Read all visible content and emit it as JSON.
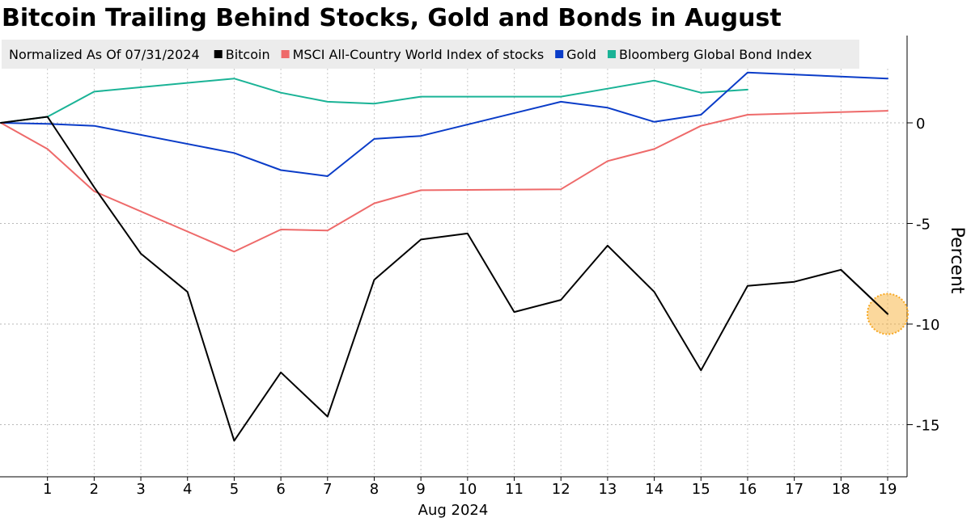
{
  "chart_data": {
    "type": "line",
    "title": "Bitcoin Trailing Behind Stocks, Gold and Bonds in August",
    "subtitle": "Normalized As Of 07/31/2024",
    "xlabel": "Aug 2024",
    "ylabel": "Percent",
    "x": [
      0,
      1,
      2,
      3,
      4,
      5,
      6,
      7,
      8,
      9,
      10,
      11,
      12,
      13,
      14,
      15,
      16,
      17,
      18,
      19
    ],
    "x_ticks": [
      "1",
      "2",
      "3",
      "4",
      "5",
      "6",
      "7",
      "8",
      "9",
      "10",
      "11",
      "12",
      "13",
      "14",
      "15",
      "16",
      "17",
      "18",
      "19"
    ],
    "y_ticks": [
      0,
      -5,
      -10,
      -15
    ],
    "y_tick_labels": [
      "0",
      "-5",
      "-10",
      "-15"
    ],
    "ylim": [
      -17.5,
      4.3
    ],
    "xlim": [
      0,
      19.3
    ],
    "grid": true,
    "legend_position": "top-left",
    "series": [
      {
        "name": "Bitcoin",
        "color": "#000000",
        "x": [
          0,
          1,
          2,
          3,
          4,
          5,
          6,
          7,
          8,
          9,
          10,
          11,
          12,
          13,
          14,
          15,
          16,
          17,
          18,
          19
        ],
        "values": [
          0,
          0.3,
          -3.2,
          -6.5,
          -8.4,
          -15.8,
          -12.4,
          -14.6,
          -7.8,
          -5.8,
          -5.5,
          -9.4,
          -8.8,
          -6.1,
          -8.4,
          -12.3,
          -8.1,
          -7.9,
          -7.3,
          -9.5
        ]
      },
      {
        "name": "MSCI All-Country World Index of stocks",
        "color": "#ee6a6a",
        "x": [
          0,
          1,
          2,
          5,
          6,
          7,
          8,
          9,
          12,
          13,
          14,
          15,
          16,
          19
        ],
        "values": [
          0,
          -1.3,
          -3.4,
          -6.4,
          -5.3,
          -5.35,
          -4.0,
          -3.35,
          -3.3,
          -1.9,
          -1.3,
          -0.15,
          0.4,
          0.6
        ]
      },
      {
        "name": "Gold",
        "color": "#0a3cc8",
        "x": [
          0,
          1,
          2,
          5,
          6,
          7,
          8,
          9,
          12,
          13,
          14,
          15,
          16,
          19
        ],
        "values": [
          0,
          -0.05,
          -0.15,
          -1.5,
          -2.35,
          -2.65,
          -0.8,
          -0.65,
          1.05,
          0.75,
          0.05,
          0.4,
          2.5,
          2.2
        ]
      },
      {
        "name": "Bloomberg Global Bond Index",
        "color": "#1ab396",
        "x": [
          0,
          1,
          2,
          5,
          6,
          7,
          8,
          9,
          12,
          13,
          14,
          15,
          16
        ],
        "values": [
          0,
          0.3,
          1.55,
          2.2,
          1.5,
          1.05,
          0.95,
          1.3,
          1.3,
          1.7,
          2.1,
          1.5,
          1.65
        ]
      }
    ],
    "annotations": [
      {
        "type": "highlight-circle",
        "series": "Bitcoin",
        "x": 19,
        "y": -9.5,
        "color": "#f7a823"
      }
    ]
  }
}
